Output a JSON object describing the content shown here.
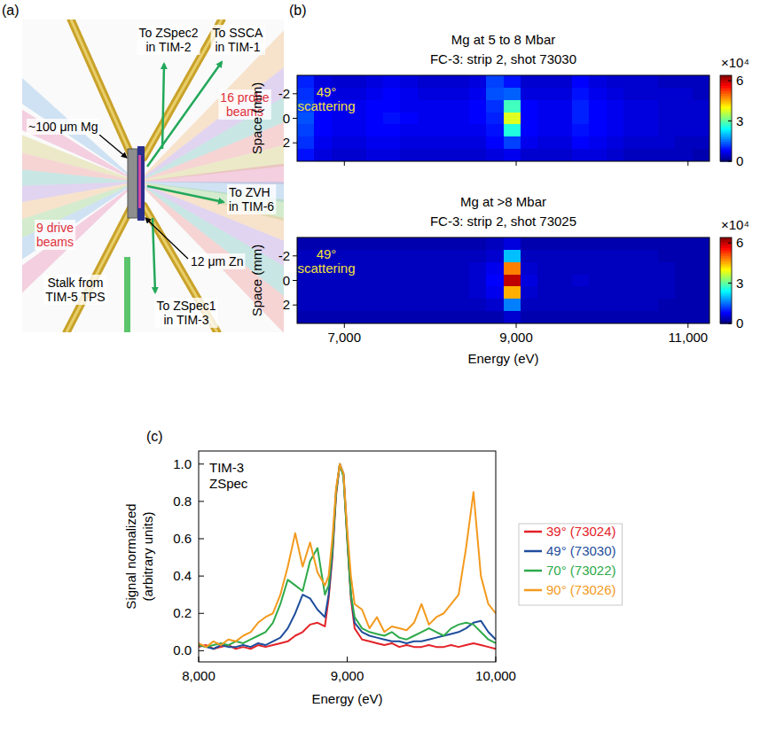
{
  "diagram": {
    "panel": "(a)",
    "labels": [
      [
        "To ZSpec2",
        "in TIM-2"
      ],
      [
        "To SSCA",
        "in TIM-1"
      ],
      [
        "16 probe",
        "beams"
      ],
      [
        "~100 μm Mg"
      ],
      [
        "To ZVH",
        "in TIM-6"
      ],
      [
        "9 drive",
        "beams"
      ],
      [
        "12 μm Zn"
      ],
      [
        "Stalk from",
        "TIM-5 TPS"
      ],
      [
        "To ZSpec1",
        "in TIM-3"
      ]
    ]
  },
  "chart_data": [
    {
      "type": "heatmap",
      "panel": "(b)",
      "title": "Mg at 5 to 8 Mbar",
      "subtitle": "FC-3: strip 2, shot 73030",
      "annotation": [
        "49°",
        "scattering"
      ],
      "ylabel": "Space (mm)",
      "tick_labels": "y",
      "x": [
        6550,
        6750,
        6950,
        7150,
        7350,
        7550,
        7750,
        7950,
        8150,
        8350,
        8550,
        8750,
        8950,
        9150,
        9350,
        9550,
        9750,
        9950,
        10150,
        10350,
        10550,
        10750,
        10950,
        11150
      ],
      "y": [
        -3,
        -2,
        -1,
        0,
        1,
        2,
        3
      ],
      "cells": [
        [
          1.0,
          0.6,
          0.5,
          0.5,
          0.6,
          0.7,
          0.6,
          0.5,
          0.5,
          0.5,
          0.6,
          1.2,
          0.9,
          0.5,
          0.5,
          0.5,
          0.8,
          0.6,
          0.5,
          0.5,
          0.5,
          0.4,
          0.4,
          0.4
        ],
        [
          1.1,
          0.7,
          0.6,
          0.6,
          0.7,
          0.8,
          0.7,
          0.6,
          0.6,
          0.6,
          0.7,
          1.3,
          1.4,
          0.6,
          0.6,
          0.6,
          0.9,
          0.7,
          0.6,
          0.5,
          0.5,
          0.5,
          0.5,
          0.4
        ],
        [
          1.2,
          0.8,
          0.7,
          0.7,
          0.8,
          0.8,
          0.7,
          0.7,
          0.7,
          0.7,
          0.8,
          1.1,
          2.8,
          0.8,
          0.7,
          0.7,
          1.0,
          0.8,
          0.7,
          0.6,
          0.6,
          0.5,
          0.5,
          0.5
        ],
        [
          1.3,
          0.8,
          0.7,
          0.7,
          0.8,
          0.9,
          0.8,
          0.7,
          0.7,
          0.7,
          0.8,
          1.0,
          3.8,
          0.8,
          0.7,
          0.7,
          1.0,
          0.8,
          0.7,
          0.6,
          0.6,
          0.5,
          0.5,
          0.5
        ],
        [
          1.2,
          0.8,
          0.7,
          0.7,
          0.8,
          0.8,
          0.7,
          0.7,
          0.7,
          0.7,
          0.7,
          0.9,
          2.6,
          0.8,
          0.7,
          0.7,
          0.9,
          0.8,
          0.7,
          0.6,
          0.6,
          0.5,
          0.5,
          0.5
        ],
        [
          1.1,
          0.7,
          0.6,
          0.6,
          0.7,
          0.7,
          0.6,
          0.6,
          0.6,
          0.6,
          0.6,
          0.8,
          1.2,
          0.7,
          0.6,
          0.6,
          0.8,
          0.7,
          0.6,
          0.5,
          0.5,
          0.5,
          0.4,
          0.4
        ],
        [
          0.9,
          0.6,
          0.5,
          0.5,
          0.6,
          0.6,
          0.5,
          0.5,
          0.5,
          0.5,
          0.5,
          0.6,
          0.7,
          0.5,
          0.5,
          0.5,
          0.6,
          0.6,
          0.5,
          0.4,
          0.4,
          0.4,
          0.4,
          0.3
        ]
      ],
      "xlim": [
        6450,
        11250
      ],
      "ylim": [
        3.5,
        -3.5
      ],
      "xticks": [
        7000,
        9000,
        11000
      ],
      "yticks": [
        -2,
        0,
        2
      ],
      "colorbar": {
        "range": [
          0,
          6.4
        ],
        "ticks": [
          0,
          3,
          6
        ],
        "label": "×10⁴"
      }
    },
    {
      "type": "heatmap",
      "title": "Mg at >8 Mbar",
      "subtitle": "FC-3: strip 2, shot 73025",
      "annotation": [
        "49°",
        "scattering"
      ],
      "xlabel": "Energy (eV)",
      "ylabel": "Space (mm)",
      "x": [
        6550,
        6750,
        6950,
        7150,
        7350,
        7550,
        7750,
        7950,
        8150,
        8350,
        8550,
        8750,
        8950,
        9150,
        9350,
        9550,
        9750,
        9950,
        10150,
        10350,
        10550,
        10750,
        10950,
        11150
      ],
      "y": [
        -3,
        -2,
        -1,
        0,
        1,
        2,
        3
      ],
      "cells": [
        [
          0.3,
          0.3,
          0.3,
          0.3,
          0.3,
          0.3,
          0.3,
          0.3,
          0.3,
          0.3,
          0.3,
          0.4,
          0.6,
          0.3,
          0.3,
          0.3,
          0.3,
          0.3,
          0.3,
          0.3,
          0.3,
          0.3,
          0.3,
          0.3
        ],
        [
          0.4,
          0.4,
          0.4,
          0.4,
          0.4,
          0.4,
          0.4,
          0.4,
          0.4,
          0.4,
          0.4,
          0.5,
          2.0,
          0.4,
          0.4,
          0.4,
          0.4,
          0.4,
          0.4,
          0.4,
          0.4,
          0.3,
          0.3,
          0.3
        ],
        [
          0.4,
          0.4,
          0.4,
          0.4,
          0.4,
          0.4,
          0.4,
          0.4,
          0.4,
          0.4,
          0.5,
          0.7,
          4.8,
          0.5,
          0.4,
          0.4,
          0.4,
          0.4,
          0.4,
          0.4,
          0.4,
          0.4,
          0.3,
          0.3
        ],
        [
          0.4,
          0.4,
          0.4,
          0.4,
          0.4,
          0.4,
          0.4,
          0.4,
          0.4,
          0.4,
          0.5,
          0.8,
          6.0,
          0.6,
          0.4,
          0.4,
          0.5,
          0.4,
          0.4,
          0.4,
          0.4,
          0.4,
          0.3,
          0.3
        ],
        [
          0.4,
          0.4,
          0.4,
          0.4,
          0.4,
          0.4,
          0.4,
          0.4,
          0.4,
          0.4,
          0.5,
          0.7,
          4.5,
          0.5,
          0.4,
          0.4,
          0.4,
          0.4,
          0.4,
          0.4,
          0.4,
          0.4,
          0.3,
          0.3
        ],
        [
          0.4,
          0.4,
          0.4,
          0.4,
          0.4,
          0.4,
          0.4,
          0.4,
          0.4,
          0.4,
          0.4,
          0.5,
          1.6,
          0.4,
          0.4,
          0.4,
          0.4,
          0.4,
          0.4,
          0.4,
          0.4,
          0.3,
          0.3,
          0.3
        ],
        [
          0.3,
          0.3,
          0.3,
          0.3,
          0.3,
          0.3,
          0.3,
          0.3,
          0.3,
          0.3,
          0.3,
          0.3,
          0.5,
          0.3,
          0.3,
          0.3,
          0.3,
          0.3,
          0.3,
          0.3,
          0.3,
          0.3,
          0.3,
          0.3
        ]
      ],
      "xlim": [
        6450,
        11250
      ],
      "ylim": [
        3.5,
        -3.5
      ],
      "xticks": [
        {
          "value": 7000,
          "label": "7,000"
        },
        {
          "value": 9000,
          "label": "9,000"
        },
        {
          "value": 11000,
          "label": "11,000"
        }
      ],
      "yticks": [
        -2,
        0,
        2
      ],
      "colorbar": {
        "range": [
          0,
          6.4
        ],
        "ticks": [
          0,
          3,
          6
        ],
        "label": "×10⁴"
      }
    },
    {
      "type": "line",
      "panel": "(c)",
      "annotation": [
        "TIM-3",
        "ZSpec"
      ],
      "xlabel": "Energy (eV)",
      "ylabel": [
        "Signal normalized",
        "(arbitrary units)"
      ],
      "x": [
        8000,
        8050,
        8100,
        8150,
        8200,
        8250,
        8300,
        8350,
        8400,
        8450,
        8500,
        8550,
        8600,
        8650,
        8700,
        8750,
        8800,
        8850,
        8875,
        8900,
        8925,
        8950,
        8975,
        9000,
        9025,
        9050,
        9100,
        9150,
        9200,
        9250,
        9300,
        9350,
        9400,
        9450,
        9500,
        9550,
        9600,
        9650,
        9700,
        9750,
        9800,
        9850,
        9900,
        9950,
        10000
      ],
      "series": [
        {
          "name": "39° (73024)",
          "color": "#e32228",
          "values": [
            0.02,
            0.03,
            0.01,
            0.02,
            0.03,
            0.01,
            0.02,
            0.01,
            0.03,
            0.02,
            0.03,
            0.04,
            0.05,
            0.08,
            0.1,
            0.14,
            0.15,
            0.13,
            0.28,
            0.5,
            0.83,
            1.0,
            0.94,
            0.6,
            0.28,
            0.12,
            0.06,
            0.05,
            0.04,
            0.03,
            0.04,
            0.02,
            0.03,
            0.02,
            0.02,
            0.03,
            0.02,
            0.02,
            0.03,
            0.02,
            0.03,
            0.04,
            0.03,
            0.02,
            0.01
          ]
        },
        {
          "name": "49° (73030)",
          "color": "#1f4e9c",
          "values": [
            0.03,
            0.02,
            0.01,
            0.03,
            0.02,
            0.02,
            0.03,
            0.02,
            0.04,
            0.03,
            0.05,
            0.07,
            0.12,
            0.2,
            0.3,
            0.28,
            0.22,
            0.18,
            0.3,
            0.52,
            0.85,
            1.0,
            0.95,
            0.62,
            0.3,
            0.15,
            0.1,
            0.08,
            0.07,
            0.06,
            0.05,
            0.05,
            0.04,
            0.05,
            0.05,
            0.06,
            0.07,
            0.08,
            0.09,
            0.1,
            0.12,
            0.15,
            0.16,
            0.1,
            0.06
          ]
        },
        {
          "name": "70° (73022)",
          "color": "#2eaa4a",
          "values": [
            0.03,
            0.02,
            0.03,
            0.04,
            0.03,
            0.05,
            0.04,
            0.06,
            0.08,
            0.1,
            0.15,
            0.25,
            0.38,
            0.35,
            0.32,
            0.48,
            0.55,
            0.3,
            0.35,
            0.55,
            0.85,
            1.0,
            0.93,
            0.6,
            0.3,
            0.18,
            0.12,
            0.1,
            0.09,
            0.08,
            0.1,
            0.07,
            0.06,
            0.08,
            0.1,
            0.12,
            0.1,
            0.08,
            0.12,
            0.14,
            0.15,
            0.14,
            0.1,
            0.06,
            0.04
          ]
        },
        {
          "name": "90° (73026)",
          "color": "#f39a1e",
          "values": [
            0.04,
            0.02,
            0.05,
            0.03,
            0.06,
            0.05,
            0.08,
            0.1,
            0.15,
            0.18,
            0.2,
            0.3,
            0.45,
            0.63,
            0.45,
            0.58,
            0.42,
            0.35,
            0.4,
            0.6,
            0.87,
            1.0,
            0.95,
            0.65,
            0.4,
            0.25,
            0.22,
            0.12,
            0.18,
            0.1,
            0.13,
            0.12,
            0.11,
            0.15,
            0.25,
            0.14,
            0.18,
            0.2,
            0.25,
            0.3,
            0.55,
            0.85,
            0.4,
            0.25,
            0.2
          ]
        }
      ],
      "xlim": [
        8000,
        10000
      ],
      "ylim": [
        -0.06,
        1.07
      ],
      "xticks": [
        {
          "value": 8000,
          "label": "8,000"
        },
        {
          "value": 9000,
          "label": "9,000"
        },
        {
          "value": 10000,
          "label": "10,000"
        }
      ],
      "yticks": [
        {
          "value": 0,
          "label": "0.0"
        },
        0.2,
        0.4,
        0.6,
        0.8,
        {
          "value": 1,
          "label": "1.0"
        }
      ],
      "legend": "right"
    }
  ]
}
